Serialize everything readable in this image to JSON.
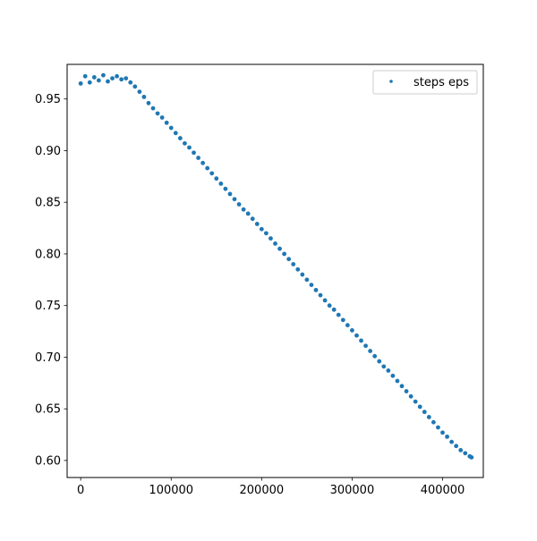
{
  "chart_data": {
    "type": "scatter",
    "title": "",
    "xlabel": "",
    "ylabel": "",
    "xlim": [
      -15000,
      445000
    ],
    "ylim": [
      0.5835,
      0.9835
    ],
    "xticks": [
      0,
      100000,
      200000,
      300000,
      400000
    ],
    "xtick_labels": [
      "0",
      "100000",
      "200000",
      "300000",
      "400000"
    ],
    "yticks": [
      0.6,
      0.65,
      0.7,
      0.75,
      0.8,
      0.85,
      0.9,
      0.95
    ],
    "ytick_labels": [
      "0.60",
      "0.65",
      "0.70",
      "0.75",
      "0.80",
      "0.85",
      "0.90",
      "0.95"
    ],
    "grid": false,
    "legend_position": "upper right",
    "series": [
      {
        "name": "steps eps",
        "color": "#1f77b4",
        "marker": "dot",
        "x": [
          0,
          5000,
          10000,
          15000,
          20000,
          25000,
          30000,
          35000,
          40000,
          45000,
          50000,
          55000,
          60000,
          65000,
          70000,
          75000,
          80000,
          85000,
          90000,
          95000,
          100000,
          105000,
          110000,
          115000,
          120000,
          125000,
          130000,
          135000,
          140000,
          145000,
          150000,
          155000,
          160000,
          165000,
          170000,
          175000,
          180000,
          185000,
          190000,
          195000,
          200000,
          205000,
          210000,
          215000,
          220000,
          225000,
          230000,
          235000,
          240000,
          245000,
          250000,
          255000,
          260000,
          265000,
          270000,
          275000,
          280000,
          285000,
          290000,
          295000,
          300000,
          305000,
          310000,
          315000,
          320000,
          325000,
          330000,
          335000,
          340000,
          345000,
          350000,
          355000,
          360000,
          365000,
          370000,
          375000,
          380000,
          385000,
          390000,
          395000,
          400000,
          405000,
          410000,
          415000,
          420000,
          425000,
          430000,
          432000
        ],
        "y": [
          0.965,
          0.972,
          0.966,
          0.971,
          0.968,
          0.973,
          0.967,
          0.97,
          0.972,
          0.969,
          0.97,
          0.966,
          0.962,
          0.957,
          0.952,
          0.946,
          0.941,
          0.936,
          0.932,
          0.927,
          0.922,
          0.917,
          0.912,
          0.907,
          0.903,
          0.898,
          0.893,
          0.888,
          0.883,
          0.878,
          0.873,
          0.868,
          0.863,
          0.858,
          0.853,
          0.848,
          0.843,
          0.839,
          0.834,
          0.829,
          0.824,
          0.82,
          0.815,
          0.81,
          0.805,
          0.8,
          0.795,
          0.79,
          0.785,
          0.78,
          0.775,
          0.77,
          0.765,
          0.76,
          0.755,
          0.75,
          0.746,
          0.741,
          0.736,
          0.731,
          0.726,
          0.721,
          0.716,
          0.711,
          0.706,
          0.701,
          0.696,
          0.691,
          0.687,
          0.682,
          0.677,
          0.672,
          0.667,
          0.662,
          0.657,
          0.652,
          0.647,
          0.642,
          0.637,
          0.632,
          0.627,
          0.623,
          0.618,
          0.614,
          0.61,
          0.607,
          0.604,
          0.603
        ]
      }
    ]
  }
}
